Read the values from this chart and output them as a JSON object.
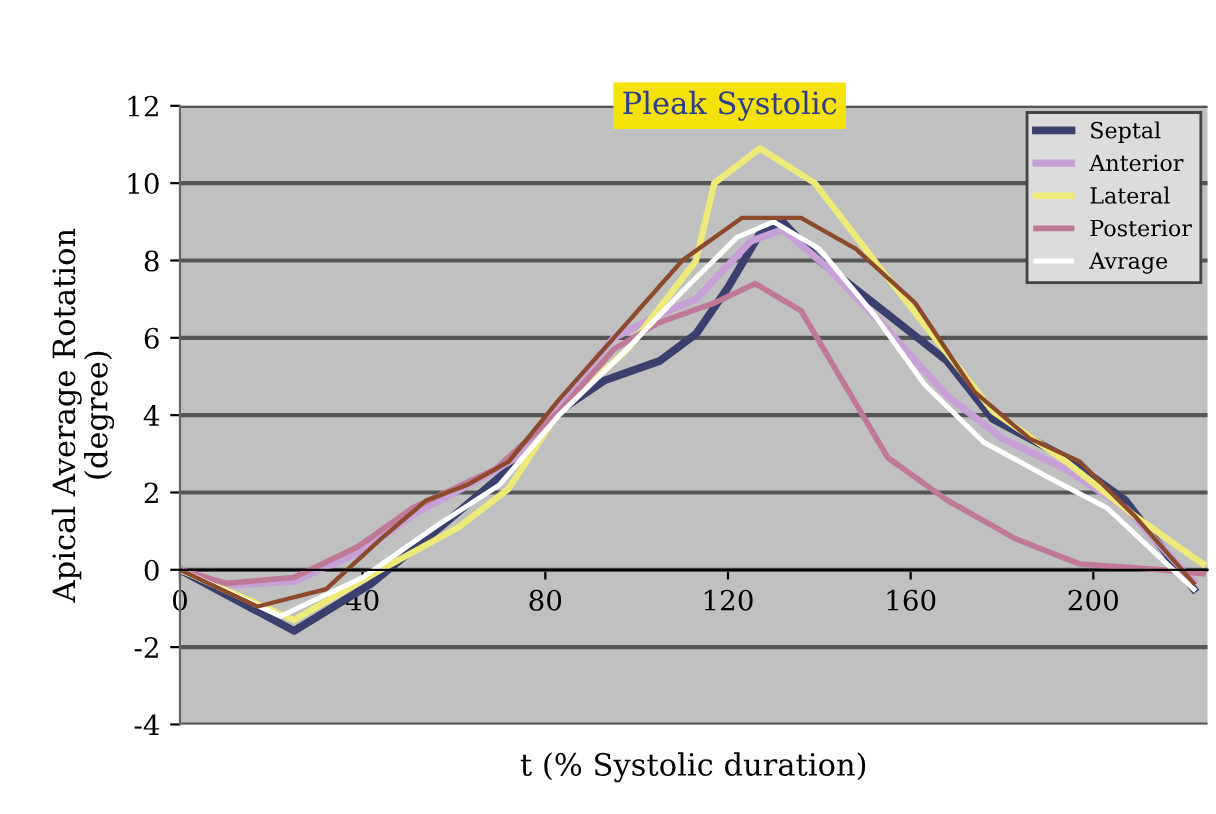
{
  "chart_data": {
    "type": "line",
    "xlabel": "t (% Systolic duration)",
    "ylabel": "Apical Average Rotation\n(degree)",
    "annotations": [
      "Pleak Systolic"
    ],
    "xlim": [
      0,
      225
    ],
    "ylim": [
      -4,
      12
    ],
    "xticks": [
      0,
      40,
      80,
      120,
      160,
      200
    ],
    "yticks": [
      -4,
      -2,
      0,
      2,
      4,
      6,
      8,
      10,
      12
    ],
    "grid": "y",
    "legend": "top right",
    "marker": "none",
    "line_style": "solid",
    "series": [
      {
        "name": "Septal",
        "color": "#3a3f6e",
        "x": [
          0,
          25,
          42,
          57,
          72,
          83,
          93,
          105,
          113,
          120,
          127,
          132,
          140,
          154,
          168,
          178,
          194,
          207,
          222
        ],
        "values": [
          0,
          -1.58,
          -0.35,
          1.1,
          2.6,
          4.1,
          4.9,
          5.4,
          6.1,
          7.3,
          8.7,
          9.0,
          8.0,
          6.7,
          5.4,
          3.9,
          2.9,
          1.8,
          -0.5
        ]
      },
      {
        "name": "Anterior",
        "color": "#c8a0d8",
        "x": [
          0,
          10,
          25,
          40,
          52,
          65,
          75,
          85,
          95,
          105,
          113,
          125,
          132,
          142,
          155,
          168,
          180,
          194,
          207,
          222
        ],
        "values": [
          0,
          -0.4,
          -0.3,
          0.5,
          1.5,
          2.3,
          3.0,
          4.6,
          6.0,
          6.6,
          7.0,
          8.5,
          8.8,
          7.8,
          6.2,
          4.5,
          3.4,
          2.6,
          1.6,
          -0.3
        ]
      },
      {
        "name": "Lateral",
        "color": "#eeea7a",
        "x": [
          0,
          25,
          44,
          61,
          72,
          83,
          98,
          113,
          117,
          127,
          139,
          154,
          168,
          178,
          194,
          209,
          224
        ],
        "values": [
          0,
          -1.3,
          0,
          1.1,
          2.1,
          4.1,
          5.7,
          8.0,
          10.0,
          10.9,
          10.0,
          7.7,
          5.6,
          4.1,
          2.8,
          1.4,
          0.15
        ]
      },
      {
        "name": "Posterior",
        "color": "#c07898",
        "x": [
          0,
          10,
          25,
          39,
          51,
          69,
          83,
          95,
          105,
          117,
          126,
          136,
          146,
          155,
          168,
          183,
          197,
          215,
          224
        ],
        "values": [
          0,
          -0.35,
          -0.2,
          0.6,
          1.6,
          2.6,
          4.1,
          5.7,
          6.4,
          6.9,
          7.4,
          6.7,
          4.7,
          2.9,
          1.8,
          0.8,
          0.15,
          0.0,
          -0.1
        ]
      },
      {
        "name": "Avrage",
        "color": "#ffffff",
        "x": [
          0,
          22,
          40,
          57,
          70,
          83,
          97,
          110,
          122,
          130,
          140,
          152,
          163,
          176,
          190,
          203,
          222
        ],
        "values": [
          0,
          -1.2,
          -0.2,
          1.2,
          2.2,
          4.0,
          5.6,
          7.2,
          8.6,
          9.0,
          8.3,
          6.6,
          4.8,
          3.3,
          2.4,
          1.6,
          -0.5
        ]
      },
      {
        "color": "#8b4a2b",
        "x": [
          0,
          17,
          32,
          44,
          54,
          63,
          72,
          83,
          95,
          110,
          123,
          136,
          148,
          161,
          174,
          186,
          197,
          209,
          222
        ],
        "values": [
          0,
          -0.95,
          -0.5,
          0.8,
          1.8,
          2.2,
          2.8,
          4.4,
          6.0,
          8.0,
          9.1,
          9.1,
          8.3,
          6.9,
          4.6,
          3.4,
          2.8,
          1.4,
          -0.35
        ]
      }
    ]
  }
}
